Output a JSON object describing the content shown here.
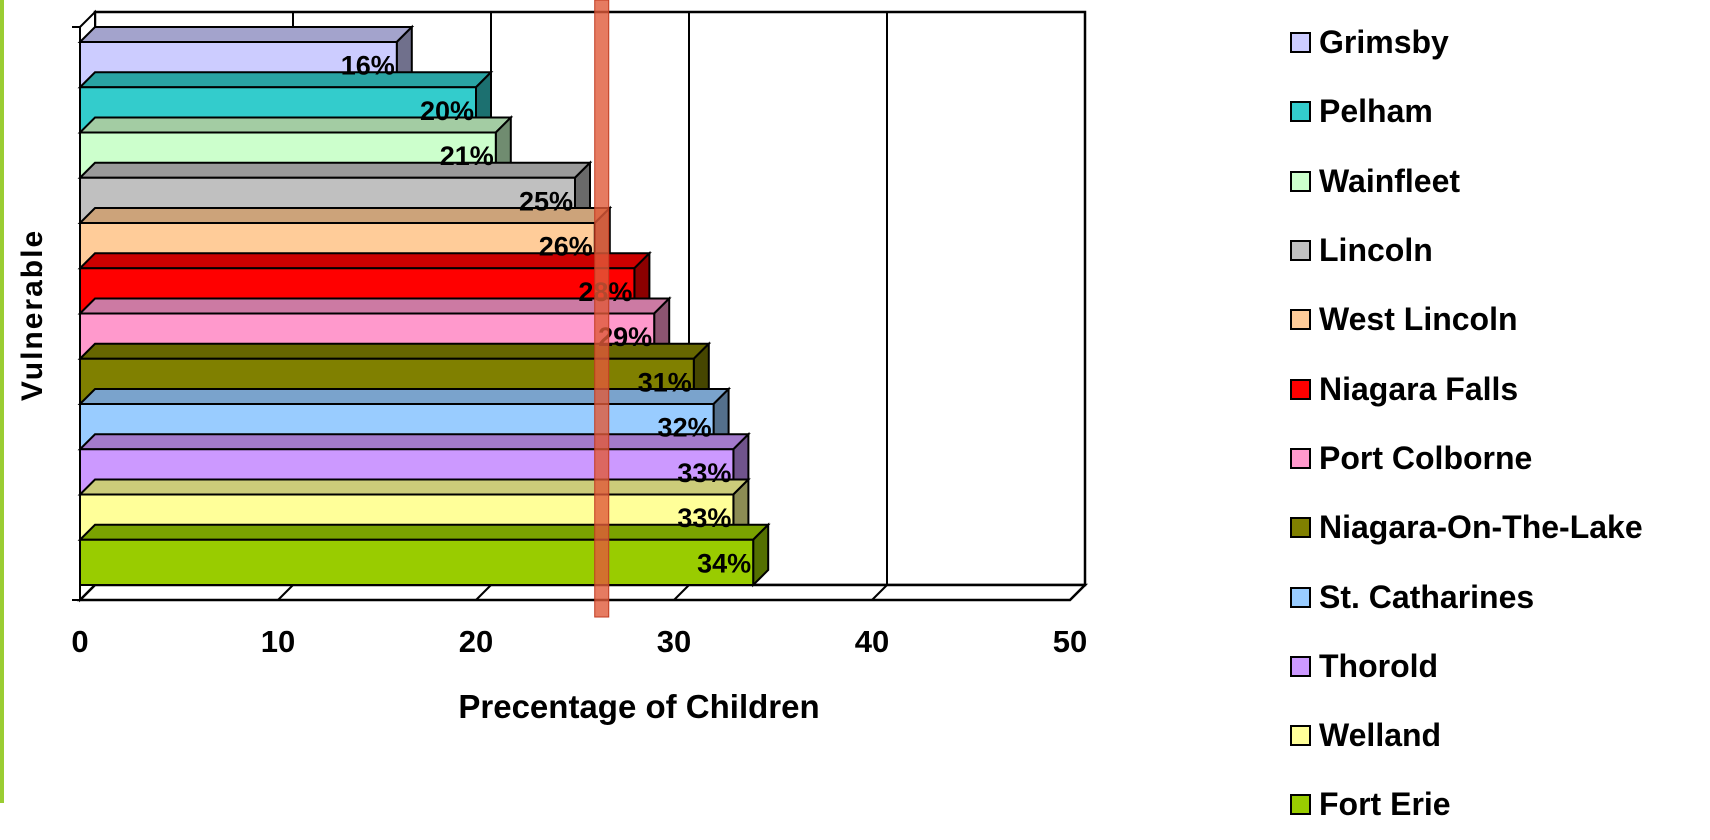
{
  "chart_data": {
    "type": "bar",
    "orientation": "horizontal",
    "style": "3d",
    "title": "",
    "xlabel": "Precentage of Children",
    "ylabel": "Vulnerable",
    "xlim": [
      0,
      50
    ],
    "xticks": [
      "0",
      "10",
      "20",
      "30",
      "40",
      "50"
    ],
    "grid": true,
    "legend_position": "right",
    "reference_line": {
      "value": 26.3,
      "color": "#e05a3a"
    },
    "categories": [
      "Grimsby",
      "Pelham",
      "Wainfleet",
      "Lincoln",
      "West Lincoln",
      "Niagara Falls",
      "Port Colborne",
      "Niagara-On-The-Lake",
      "St. Catharines",
      "Thorold",
      "Welland",
      "Fort Erie"
    ],
    "values": [
      16,
      20,
      21,
      25,
      26,
      28,
      29,
      31,
      32,
      33,
      33,
      34
    ],
    "data_labels": [
      "16%",
      "20%",
      "21%",
      "25%",
      "26%",
      "28%",
      "29%",
      "31%",
      "32%",
      "33%",
      "33%",
      "34%"
    ],
    "colors": [
      "#ccccff",
      "#33cccc",
      "#ccffcc",
      "#c0c0c0",
      "#ffcc99",
      "#ff0000",
      "#ff99cc",
      "#808000",
      "#99ccff",
      "#cc99ff",
      "#ffff99",
      "#99cc00"
    ]
  }
}
